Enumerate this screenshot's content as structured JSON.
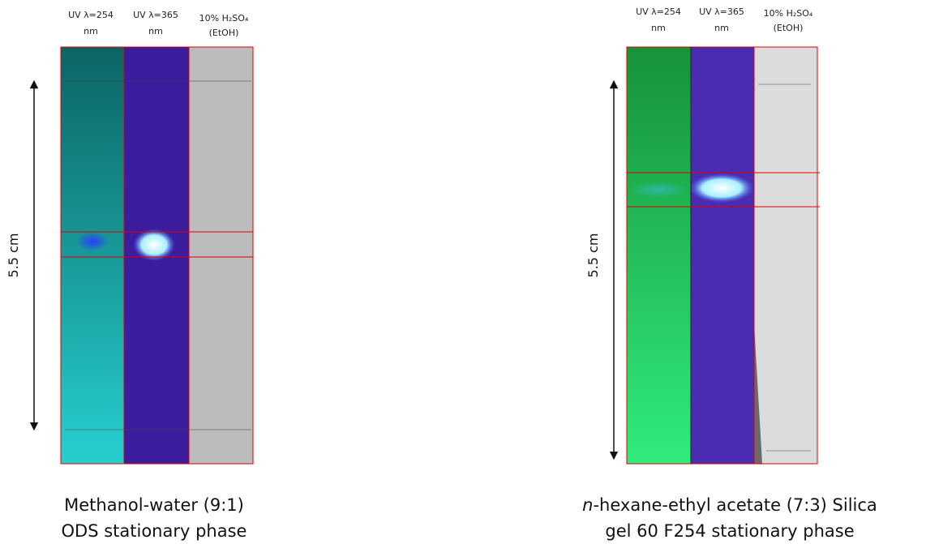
{
  "left_panel": {
    "column_labels": [
      {
        "lines": [
          "UV λ=254",
          "nm"
        ]
      },
      {
        "lines": [
          "UV λ=365",
          "nm"
        ]
      },
      {
        "lines": [
          "10% H₂SO₄",
          "(EtOH)"
        ]
      }
    ],
    "scale_label": "5.5 cm",
    "caption": {
      "lines": [
        "Methanol-water (9:1)",
        "ODS stationary phase"
      ]
    }
  },
  "right_panel": {
    "column_labels": [
      {
        "lines": [
          "UV λ=254",
          "nm"
        ]
      },
      {
        "lines": [
          "UV λ=365",
          "nm"
        ]
      },
      {
        "lines": [
          "10% H₂SO₄",
          "(EtOH)"
        ]
      }
    ],
    "scale_label": "5.5 cm",
    "caption": {
      "line1": {
        "italic": "n",
        "text": "-hexane-ethyl acetate (7:3) Silica"
      },
      "line2": "gel 60 F254 stationary phase"
    }
  }
}
